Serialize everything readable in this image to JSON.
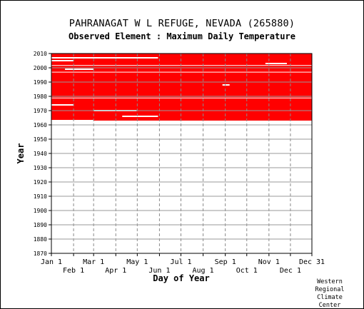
{
  "chart_data": {
    "type": "heatmap",
    "title": "PAHRANAGAT W L REFUGE, NEVADA   (265880)",
    "subtitle": "Observed Element : Maximum Daily Temperature",
    "xlabel": "Day of Year",
    "ylabel": "Year",
    "x_ticks_top_row": [
      "Jan 1",
      "Mar 1",
      "May 1",
      "Jul 1",
      "Sep 1",
      "Nov 1",
      "Dec 31"
    ],
    "x_ticks_bottom_row": [
      "Feb 1",
      "Apr 1",
      "Jun 1",
      "Aug 1",
      "Oct 1",
      "Dec 1"
    ],
    "x_tick_days": [
      1,
      32,
      60,
      91,
      121,
      152,
      182,
      213,
      244,
      274,
      305,
      335,
      365
    ],
    "xlim": [
      1,
      365
    ],
    "y_ticks": [
      1870,
      1880,
      1890,
      1900,
      1910,
      1920,
      1930,
      1940,
      1950,
      1960,
      1970,
      1980,
      1990,
      2000,
      2010
    ],
    "ylim": [
      1870,
      2010
    ],
    "grid": true,
    "mark_color": "#ff0000",
    "observed_period": {
      "start_year": 1963,
      "end_year": 2010
    },
    "missing_year_bands": [
      {
        "start_year": 1978.6,
        "end_year": 1979.1
      },
      {
        "start_year": 1996.7,
        "end_year": 1997.2
      },
      {
        "start_year": 2001.4,
        "end_year": 2001.9
      }
    ],
    "missing_segments": [
      {
        "year": 2007,
        "day_start": 1,
        "day_end": 150
      },
      {
        "year": 2005,
        "day_start": 1,
        "day_end": 32
      },
      {
        "year": 1999,
        "day_start": 20,
        "day_end": 60
      },
      {
        "year": 1974,
        "day_start": 1,
        "day_end": 32
      },
      {
        "year": 1970,
        "day_start": 60,
        "day_end": 120
      },
      {
        "year": 1966,
        "day_start": 100,
        "day_end": 150
      },
      {
        "year": 1963,
        "day_start": 1,
        "day_end": 60
      },
      {
        "year": 1988,
        "day_start": 240,
        "day_end": 250
      },
      {
        "year": 2003,
        "day_start": 300,
        "day_end": 330
      }
    ]
  },
  "credit": [
    "Western",
    "Regional",
    "Climate",
    "Center"
  ]
}
